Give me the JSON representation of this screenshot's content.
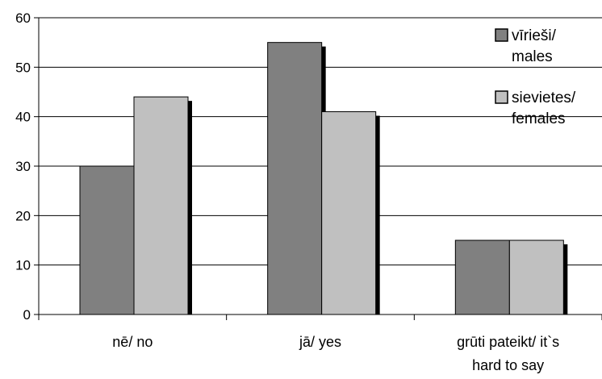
{
  "chart_data": {
    "type": "bar",
    "categories": [
      "nē/ no",
      "jā/ yes",
      "grūti pateikt/ it`s hard to say"
    ],
    "category_lines": [
      [
        "nē/ no"
      ],
      [
        "jā/ yes"
      ],
      [
        "grūti pateikt/ it`s",
        "hard to say"
      ]
    ],
    "series": [
      {
        "name": "vīrieši/ males",
        "name_lines": [
          "vīrieši/",
          "males"
        ],
        "color": "#808080",
        "values": [
          30,
          55,
          15
        ]
      },
      {
        "name": "sievietes/ females",
        "name_lines": [
          "sievietes/",
          "females"
        ],
        "color": "#c0c0c0",
        "values": [
          44,
          41,
          15
        ]
      }
    ],
    "title": "",
    "xlabel": "",
    "ylabel": "",
    "ylim": [
      0,
      60
    ],
    "yticks": [
      0,
      10,
      20,
      30,
      40,
      50,
      60
    ],
    "grid": true,
    "legend_position": "top-right",
    "shadow_color": "#000000"
  }
}
